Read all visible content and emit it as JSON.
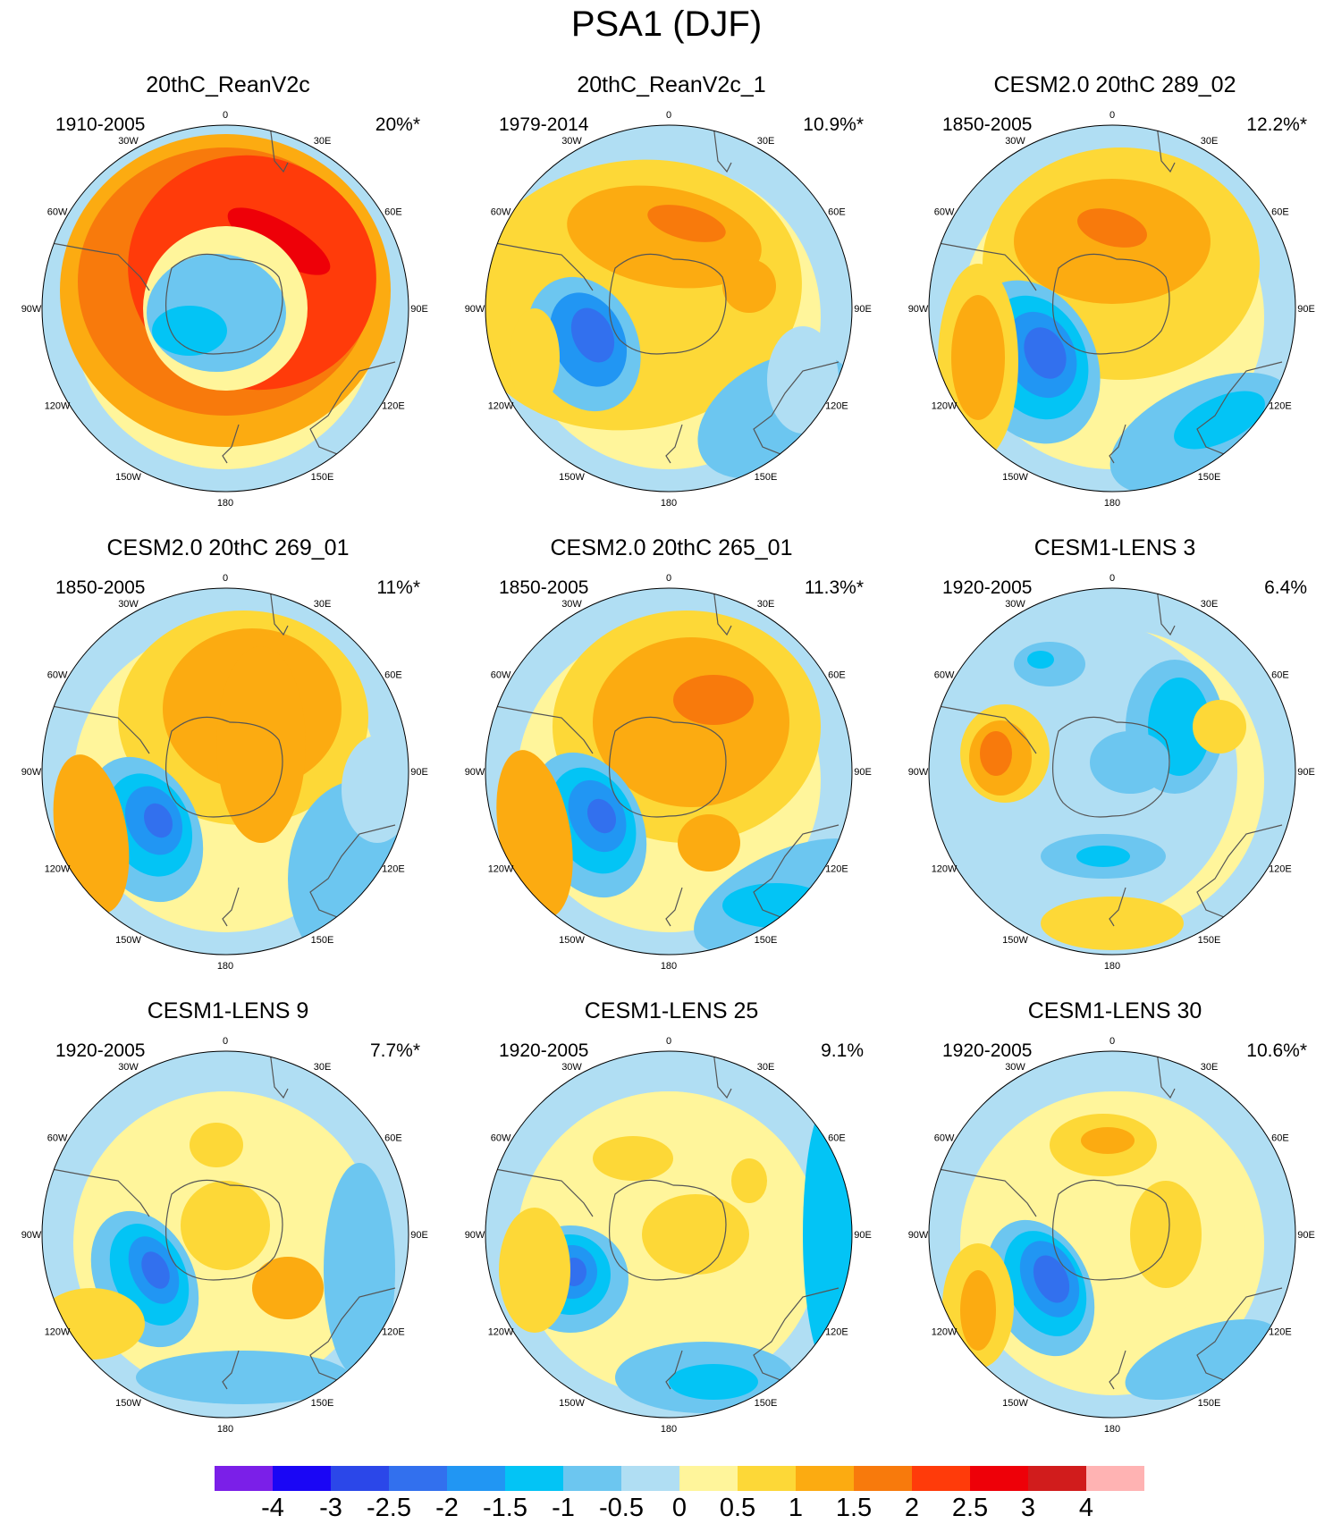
{
  "chart_data": {
    "type": "heatmap",
    "title": "PSA1 (DJF)",
    "projection": "south-polar stereographic",
    "longitude_labels": [
      "0",
      "30E",
      "60E",
      "90E",
      "120E",
      "150E",
      "180",
      "150W",
      "120W",
      "90W",
      "60W",
      "30W"
    ],
    "colorbar": {
      "levels": [
        -4,
        -3,
        -2.5,
        -2,
        -1.5,
        -1,
        -0.5,
        0,
        0.5,
        1,
        1.5,
        2,
        2.5,
        3,
        4
      ],
      "tick_labels": [
        "-4",
        "-3",
        "-2.5",
        "-2",
        "-1.5",
        "-1",
        "-0.5",
        "0",
        "0.5",
        "1",
        "1.5",
        "2",
        "2.5",
        "3",
        "4"
      ],
      "colors": [
        "#7b1fe8",
        "#1a06f5",
        "#2b47e9",
        "#3270ee",
        "#2196f3",
        "#03c4f5",
        "#6cc6f0",
        "#b0def3",
        "#fff59b",
        "#fdd837",
        "#fcab11",
        "#f87a0c",
        "#ff3b0a",
        "#ee0008",
        "#d11c1c",
        "#ffb3b3"
      ]
    },
    "panels": [
      {
        "title": "20thC_ReanV2c",
        "period": "1910-2005",
        "pct": "20%*"
      },
      {
        "title": "20thC_ReanV2c_1",
        "period": "1979-2014",
        "pct": "10.9%*"
      },
      {
        "title": "CESM2.0 20thC 289_02",
        "period": "1850-2005",
        "pct": "12.2%*"
      },
      {
        "title": "CESM2.0 20thC 269_01",
        "period": "1850-2005",
        "pct": "11%*"
      },
      {
        "title": "CESM2.0 20thC 265_01",
        "period": "1850-2005",
        "pct": "11.3%*"
      },
      {
        "title": "CESM1-LENS 3",
        "period": "1920-2005",
        "pct": "6.4%"
      },
      {
        "title": "CESM1-LENS 9",
        "period": "1920-2005",
        "pct": "7.7%*"
      },
      {
        "title": "CESM1-LENS 25",
        "period": "1920-2005",
        "pct": "9.1%"
      },
      {
        "title": "CESM1-LENS 30",
        "period": "1920-2005",
        "pct": "10.6%*"
      }
    ]
  }
}
